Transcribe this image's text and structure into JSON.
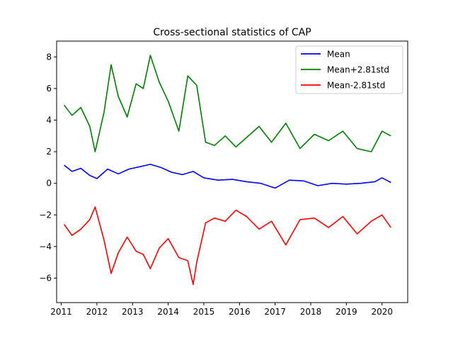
{
  "chart_data": {
    "type": "line",
    "title": "Cross-sectional statistics of CAP",
    "xlabel": "",
    "ylabel": "",
    "xlim": [
      2010.87,
      2020.72
    ],
    "ylim": [
      -7.55,
      9.0
    ],
    "xticks": [
      2011,
      2012,
      2013,
      2014,
      2015,
      2016,
      2017,
      2018,
      2019,
      2020
    ],
    "xtick_labels": [
      "2011",
      "2012",
      "2013",
      "2014",
      "2015",
      "2016",
      "2017",
      "2018",
      "2019",
      "2020"
    ],
    "yticks": [
      -6,
      -4,
      -2,
      0,
      2,
      4,
      6,
      8
    ],
    "ytick_labels": [
      "−6",
      "−4",
      "−2",
      "0",
      "2",
      "4",
      "6",
      "8"
    ],
    "grid": false,
    "legend_position": "top-right",
    "series": [
      {
        "name": "Mean",
        "color": "#0000ff",
        "points": [
          [
            2011.08,
            1.15
          ],
          [
            2011.3,
            0.75
          ],
          [
            2011.55,
            0.95
          ],
          [
            2011.8,
            0.5
          ],
          [
            2012.0,
            0.3
          ],
          [
            2012.3,
            0.9
          ],
          [
            2012.6,
            0.6
          ],
          [
            2012.9,
            0.9
          ],
          [
            2013.2,
            1.05
          ],
          [
            2013.5,
            1.2
          ],
          [
            2013.8,
            1.0
          ],
          [
            2014.1,
            0.7
          ],
          [
            2014.4,
            0.55
          ],
          [
            2014.7,
            0.75
          ],
          [
            2015.0,
            0.35
          ],
          [
            2015.4,
            0.2
          ],
          [
            2015.8,
            0.25
          ],
          [
            2016.2,
            0.1
          ],
          [
            2016.6,
            0.0
          ],
          [
            2017.0,
            -0.3
          ],
          [
            2017.4,
            0.2
          ],
          [
            2017.8,
            0.15
          ],
          [
            2018.2,
            -0.15
          ],
          [
            2018.6,
            0.0
          ],
          [
            2019.0,
            -0.05
          ],
          [
            2019.4,
            0.0
          ],
          [
            2019.8,
            0.1
          ],
          [
            2020.0,
            0.35
          ],
          [
            2020.25,
            0.05
          ]
        ]
      },
      {
        "name": "Mean+2.81std",
        "color": "#008000",
        "points": [
          [
            2011.08,
            4.95
          ],
          [
            2011.3,
            4.3
          ],
          [
            2011.55,
            4.8
          ],
          [
            2011.8,
            3.6
          ],
          [
            2011.95,
            2.0
          ],
          [
            2012.2,
            4.5
          ],
          [
            2012.4,
            7.5
          ],
          [
            2012.6,
            5.5
          ],
          [
            2012.85,
            4.2
          ],
          [
            2013.1,
            6.3
          ],
          [
            2013.3,
            6.0
          ],
          [
            2013.5,
            8.1
          ],
          [
            2013.75,
            6.4
          ],
          [
            2014.0,
            5.2
          ],
          [
            2014.3,
            3.3
          ],
          [
            2014.55,
            6.8
          ],
          [
            2014.8,
            6.2
          ],
          [
            2015.05,
            2.6
          ],
          [
            2015.3,
            2.4
          ],
          [
            2015.6,
            3.0
          ],
          [
            2015.9,
            2.3
          ],
          [
            2016.2,
            2.9
          ],
          [
            2016.55,
            3.6
          ],
          [
            2016.9,
            2.6
          ],
          [
            2017.3,
            3.8
          ],
          [
            2017.7,
            2.2
          ],
          [
            2018.1,
            3.1
          ],
          [
            2018.5,
            2.7
          ],
          [
            2018.9,
            3.3
          ],
          [
            2019.3,
            2.2
          ],
          [
            2019.7,
            2.0
          ],
          [
            2020.0,
            3.3
          ],
          [
            2020.25,
            3.0
          ]
        ]
      },
      {
        "name": "Mean-2.81std",
        "color": "#ff0000",
        "points": [
          [
            2011.08,
            -2.6
          ],
          [
            2011.3,
            -3.3
          ],
          [
            2011.55,
            -2.9
          ],
          [
            2011.8,
            -2.3
          ],
          [
            2011.95,
            -1.5
          ],
          [
            2012.2,
            -3.6
          ],
          [
            2012.4,
            -5.7
          ],
          [
            2012.6,
            -4.4
          ],
          [
            2012.85,
            -3.4
          ],
          [
            2013.1,
            -4.3
          ],
          [
            2013.3,
            -4.5
          ],
          [
            2013.5,
            -5.4
          ],
          [
            2013.75,
            -4.1
          ],
          [
            2014.0,
            -3.5
          ],
          [
            2014.3,
            -4.7
          ],
          [
            2014.55,
            -4.9
          ],
          [
            2014.7,
            -6.4
          ],
          [
            2014.8,
            -5.0
          ],
          [
            2015.05,
            -2.5
          ],
          [
            2015.3,
            -2.2
          ],
          [
            2015.6,
            -2.4
          ],
          [
            2015.9,
            -1.7
          ],
          [
            2016.2,
            -2.1
          ],
          [
            2016.55,
            -2.9
          ],
          [
            2016.9,
            -2.4
          ],
          [
            2017.3,
            -3.9
          ],
          [
            2017.7,
            -2.3
          ],
          [
            2018.1,
            -2.2
          ],
          [
            2018.5,
            -2.8
          ],
          [
            2018.9,
            -2.1
          ],
          [
            2019.3,
            -3.2
          ],
          [
            2019.7,
            -2.4
          ],
          [
            2020.0,
            -2.0
          ],
          [
            2020.25,
            -2.8
          ]
        ]
      }
    ]
  }
}
